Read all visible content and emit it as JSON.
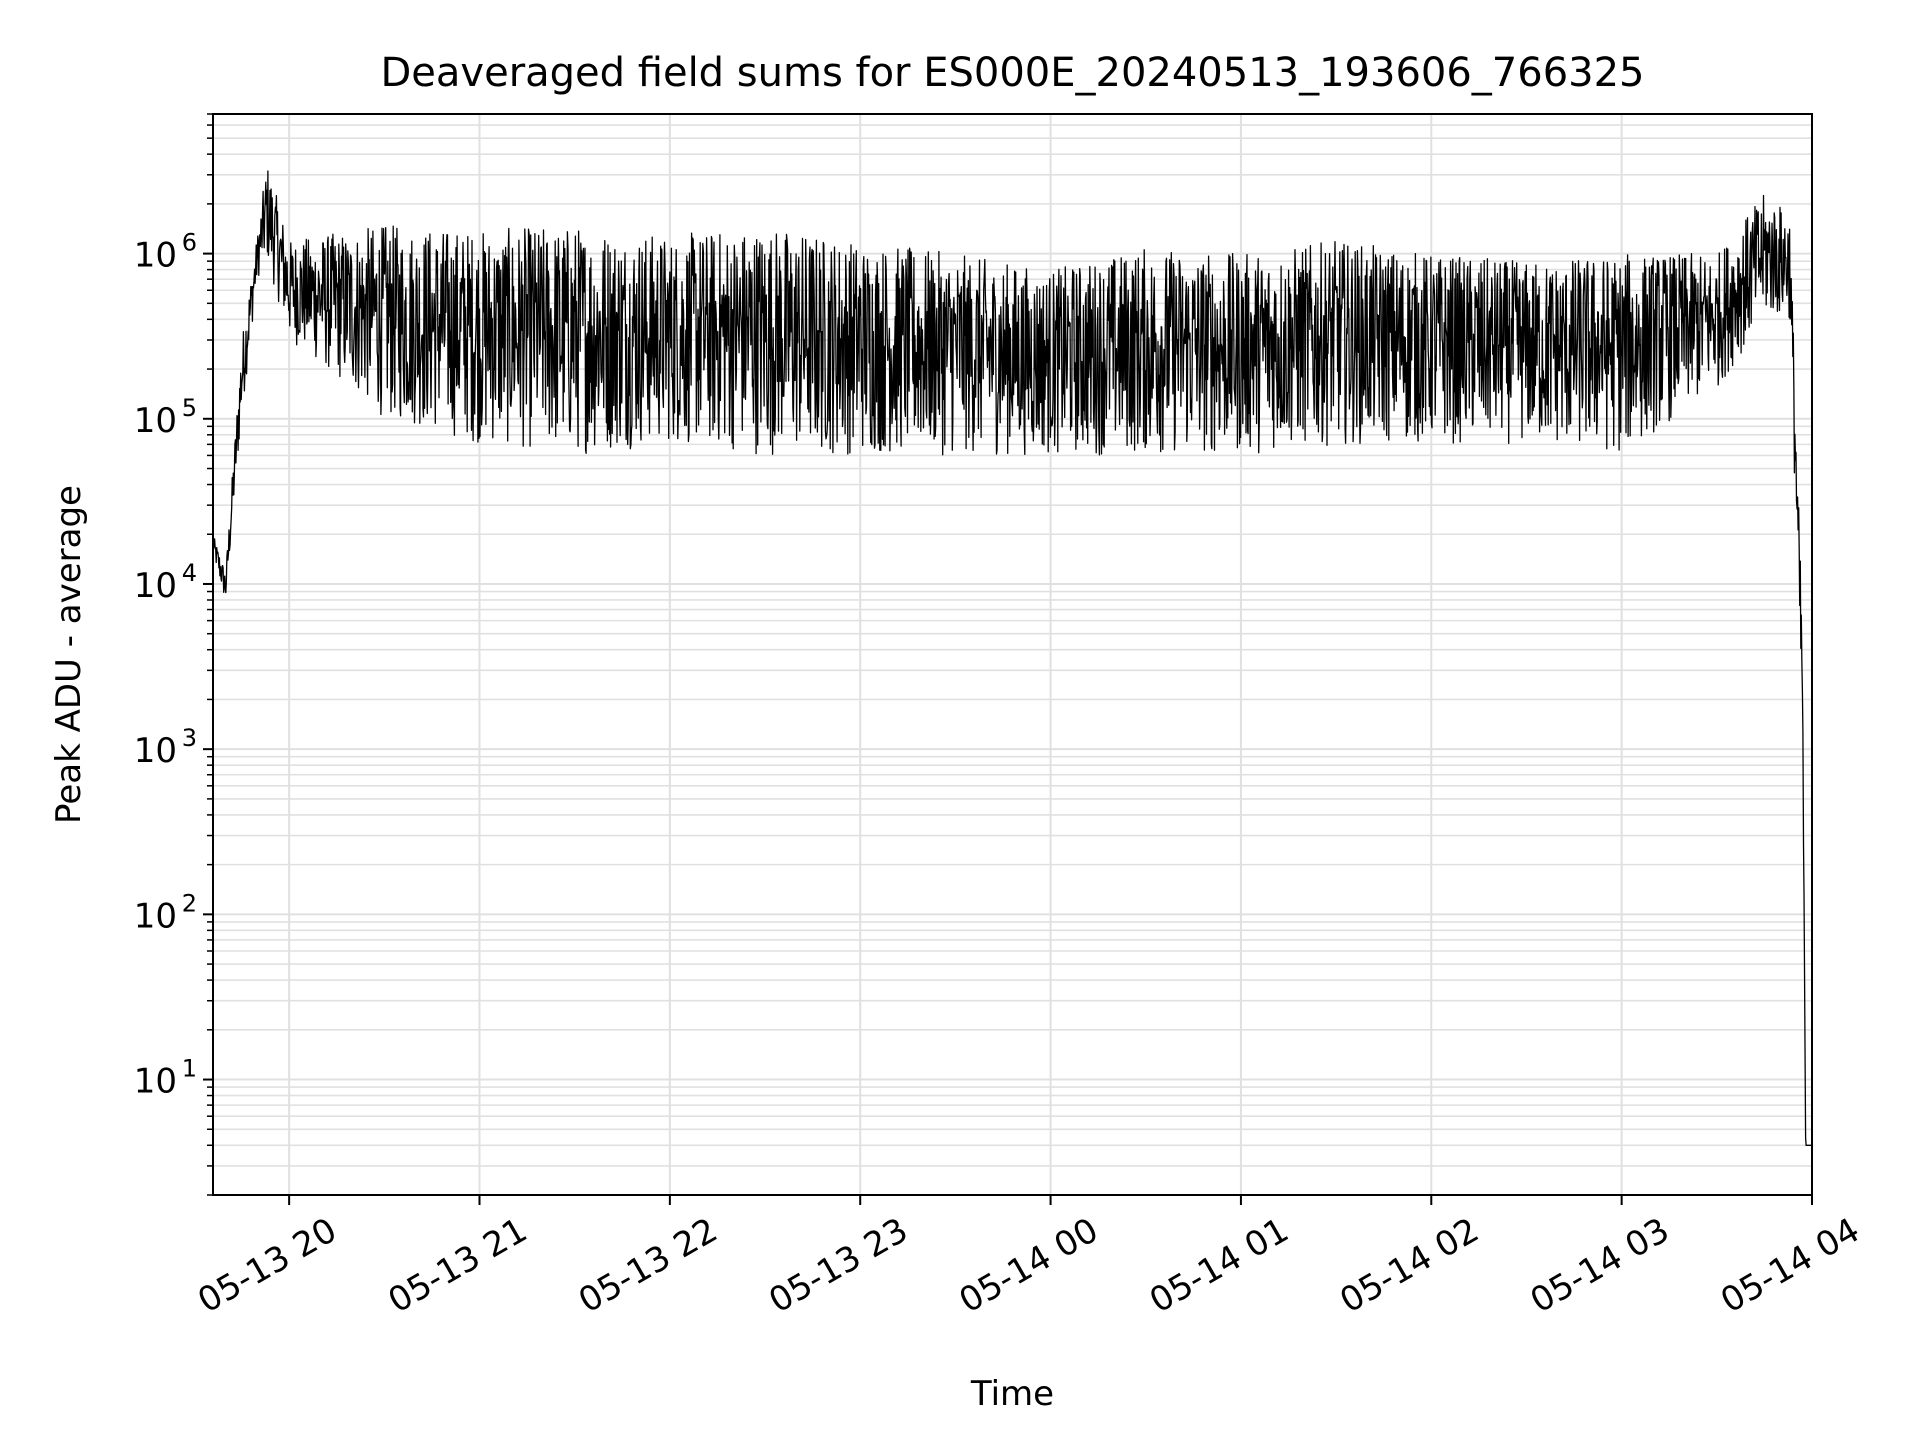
{
  "chart_data": {
    "type": "line",
    "title": "Deaveraged field sums for ES000E_20240513_193606_766325",
    "xlabel": "Time",
    "ylabel": "Peak ADU - average",
    "x_tick_labels": [
      "05-13 20",
      "05-13 21",
      "05-13 22",
      "05-13 23",
      "05-14 00",
      "05-14 01",
      "05-14 02",
      "05-14 03",
      "05-14 04"
    ],
    "x_ticks": [
      "2024-05-13T20:00",
      "2024-05-13T21:00",
      "2024-05-13T22:00",
      "2024-05-13T23:00",
      "2024-05-14T00:00",
      "2024-05-14T01:00",
      "2024-05-14T02:00",
      "2024-05-14T03:00",
      "2024-05-14T04:00"
    ],
    "xlim": [
      "2024-05-13T19:36",
      "2024-05-14T04:00"
    ],
    "yscale": "log",
    "ylim": [
      2,
      7000000
    ],
    "y_ticks": [
      {
        "value": 10,
        "base": "10",
        "exp": "1"
      },
      {
        "value": 100,
        "base": "10",
        "exp": "2"
      },
      {
        "value": 1000,
        "base": "10",
        "exp": "3"
      },
      {
        "value": 10000,
        "base": "10",
        "exp": "4"
      },
      {
        "value": 100000,
        "base": "10",
        "exp": "5"
      },
      {
        "value": 1000000,
        "base": "10",
        "exp": "6"
      }
    ],
    "grid": true,
    "line_color": "#000000",
    "grid_color": "#e0e0e0",
    "series_envelope": [
      {
        "t": "2024-05-13T19:36",
        "low": 15000,
        "high": 20000
      },
      {
        "t": "2024-05-13T19:40",
        "low": 7500,
        "high": 12000
      },
      {
        "t": "2024-05-13T19:45",
        "low": 100000,
        "high": 300000
      },
      {
        "t": "2024-05-13T19:50",
        "low": 700000,
        "high": 1300000
      },
      {
        "t": "2024-05-13T19:53",
        "low": 900000,
        "high": 3600000
      },
      {
        "t": "2024-05-13T20:00",
        "low": 300000,
        "high": 1200000
      },
      {
        "t": "2024-05-13T20:30",
        "low": 100000,
        "high": 1500000
      },
      {
        "t": "2024-05-13T21:00",
        "low": 70000,
        "high": 1400000
      },
      {
        "t": "2024-05-13T21:30",
        "low": 60000,
        "high": 1500000
      },
      {
        "t": "2024-05-13T22:00",
        "low": 70000,
        "high": 1300000
      },
      {
        "t": "2024-05-13T22:30",
        "low": 60000,
        "high": 1500000
      },
      {
        "t": "2024-05-13T23:00",
        "low": 60000,
        "high": 1200000
      },
      {
        "t": "2024-05-13T23:30",
        "low": 60000,
        "high": 1000000
      },
      {
        "t": "2024-05-14T00:00",
        "low": 60000,
        "high": 800000
      },
      {
        "t": "2024-05-14T00:30",
        "low": 60000,
        "high": 1100000
      },
      {
        "t": "2024-05-14T01:00",
        "low": 60000,
        "high": 1000000
      },
      {
        "t": "2024-05-14T01:30",
        "low": 70000,
        "high": 1200000
      },
      {
        "t": "2024-05-14T02:00",
        "low": 70000,
        "high": 1000000
      },
      {
        "t": "2024-05-14T02:30",
        "low": 70000,
        "high": 900000
      },
      {
        "t": "2024-05-14T03:00",
        "low": 60000,
        "high": 1000000
      },
      {
        "t": "2024-05-14T03:30",
        "low": 150000,
        "high": 1000000
      },
      {
        "t": "2024-05-14T03:45",
        "low": 400000,
        "high": 2300000
      },
      {
        "t": "2024-05-14T03:53",
        "low": 400000,
        "high": 1800000
      },
      {
        "t": "2024-05-14T03:55",
        "low": 20000,
        "high": 100000
      },
      {
        "t": "2024-05-14T03:57",
        "low": 1000,
        "high": 5000
      },
      {
        "t": "2024-05-14T03:58",
        "low": 4,
        "high": 4
      },
      {
        "t": "2024-05-14T04:00",
        "low": 4,
        "high": 4
      }
    ]
  }
}
